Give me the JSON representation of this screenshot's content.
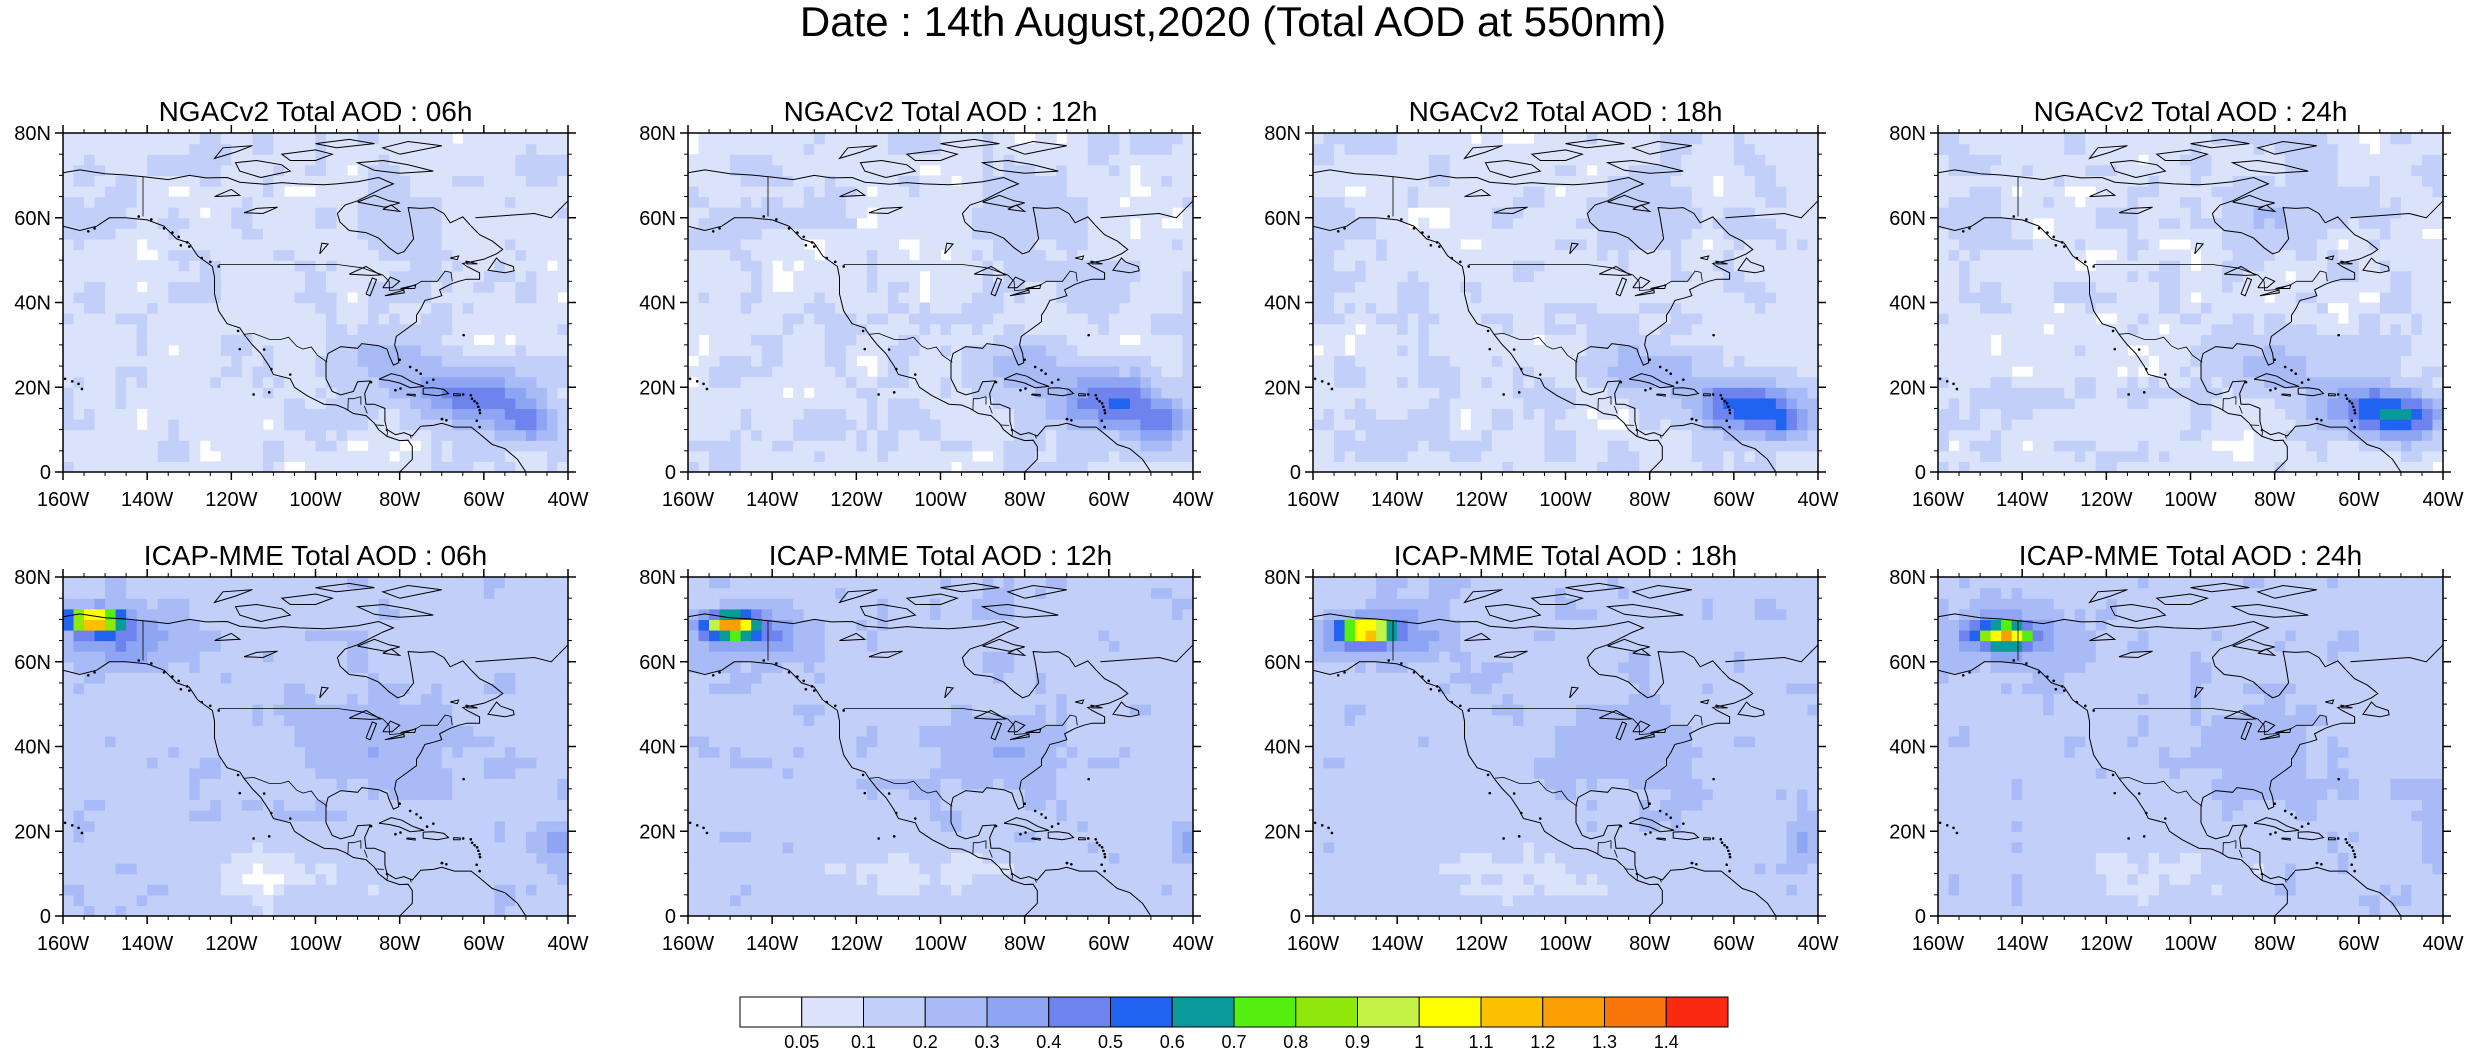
{
  "title": "Date : 14th August,2020 (Total AOD at 550nm)",
  "panels": [
    {
      "title": "NGACv2 Total AOD : 06h",
      "model": "ngac",
      "hour": "06h"
    },
    {
      "title": "NGACv2 Total AOD : 12h",
      "model": "ngac",
      "hour": "12h"
    },
    {
      "title": "NGACv2 Total AOD : 18h",
      "model": "ngac",
      "hour": "18h"
    },
    {
      "title": "NGACv2 Total AOD : 24h",
      "model": "ngac",
      "hour": "24h"
    },
    {
      "title": "ICAP-MME Total AOD : 06h",
      "model": "icap",
      "hour": "06h"
    },
    {
      "title": "ICAP-MME Total AOD : 12h",
      "model": "icap",
      "hour": "12h"
    },
    {
      "title": "ICAP-MME Total AOD : 18h",
      "model": "icap",
      "hour": "18h"
    },
    {
      "title": "ICAP-MME Total AOD : 24h",
      "model": "icap",
      "hour": "24h"
    }
  ],
  "axes": {
    "lat_ticks": [
      "0",
      "20N",
      "40N",
      "60N",
      "80N"
    ],
    "lon_ticks": [
      "160W",
      "140W",
      "120W",
      "100W",
      "80W",
      "60W",
      "40W"
    ],
    "lat_range": [
      0,
      80
    ],
    "lon_range": [
      -160,
      -40
    ]
  },
  "colorbar": {
    "labels": [
      "0.05",
      "0.1",
      "0.2",
      "0.3",
      "0.4",
      "0.5",
      "0.6",
      "0.7",
      "0.8",
      "0.9",
      "1",
      "1.1",
      "1.2",
      "1.3",
      "1.4"
    ],
    "colors": [
      "#ffffff",
      "#dbe3fb",
      "#c2cff8",
      "#a8bbf6",
      "#8ea5f3",
      "#6f83ee",
      "#1f63f0",
      "#0a9a9a",
      "#55ee11",
      "#8fe80c",
      "#c4f247",
      "#ffff00",
      "#fcc003",
      "#fa9e05",
      "#f9760a",
      "#fa2a10"
    ]
  },
  "chart_data": {
    "type": "heatmap",
    "variable": "Total AOD at 550nm",
    "date": "14th August,2020",
    "models": [
      "NGACv2",
      "ICAP-MME"
    ],
    "forecast_hours": [
      "06h",
      "12h",
      "18h",
      "24h"
    ],
    "xlim": [
      -160,
      -40
    ],
    "ylim": [
      0,
      80
    ],
    "levels": [
      0.05,
      0.1,
      0.2,
      0.3,
      0.4,
      0.5,
      0.6,
      0.7,
      0.8,
      0.9,
      1,
      1.1,
      1.2,
      1.3,
      1.4
    ],
    "approximate_features": [
      {
        "model": "NGACv2",
        "feature": "Saharan dust plume over Caribbean / tropical Atlantic",
        "lon_range": [
          -75,
          -40
        ],
        "lat_range": [
          8,
          26
        ],
        "aod": 0.45
      },
      {
        "model": "ICAP-MME",
        "feature": "Smoke plume over Alaska / Yukon",
        "lon_range": [
          -160,
          -140
        ],
        "lat_range": [
          65,
          75
        ],
        "aod": 1.1
      },
      {
        "model": "ICAP-MME",
        "feature": "Broad background aerosol over continent",
        "lon_range": [
          -130,
          -60
        ],
        "lat_range": [
          25,
          65
        ],
        "aod": 0.15
      }
    ]
  }
}
